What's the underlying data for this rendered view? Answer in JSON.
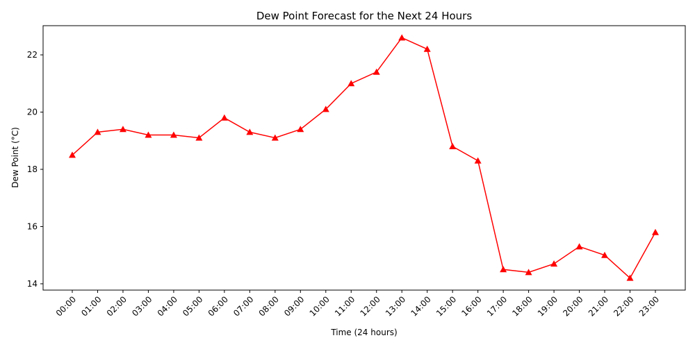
{
  "chart_data": {
    "type": "line",
    "title": "Dew Point Forecast for the Next 24 Hours",
    "xlabel": "Time (24 hours)",
    "ylabel": "Dew Point (°C)",
    "categories": [
      "00:00",
      "01:00",
      "02:00",
      "03:00",
      "04:00",
      "05:00",
      "06:00",
      "07:00",
      "08:00",
      "09:00",
      "10:00",
      "11:00",
      "12:00",
      "13:00",
      "14:00",
      "15:00",
      "16:00",
      "17:00",
      "18:00",
      "19:00",
      "20:00",
      "21:00",
      "22:00",
      "23:00"
    ],
    "series": [
      {
        "values": [
          18.5,
          19.3,
          19.4,
          19.2,
          19.2,
          19.1,
          19.8,
          19.3,
          19.1,
          19.4,
          20.1,
          21.0,
          21.4,
          22.6,
          22.2,
          18.8,
          18.3,
          14.5,
          14.4,
          14.7,
          15.3,
          15.0,
          14.2,
          15.8
        ],
        "color": "#ff0000",
        "marker": "triangle-up"
      }
    ],
    "yticks": [
      14,
      16,
      18,
      20,
      22
    ],
    "ylim": [
      13.78,
      23.02
    ],
    "grid": false,
    "legend": "none"
  }
}
